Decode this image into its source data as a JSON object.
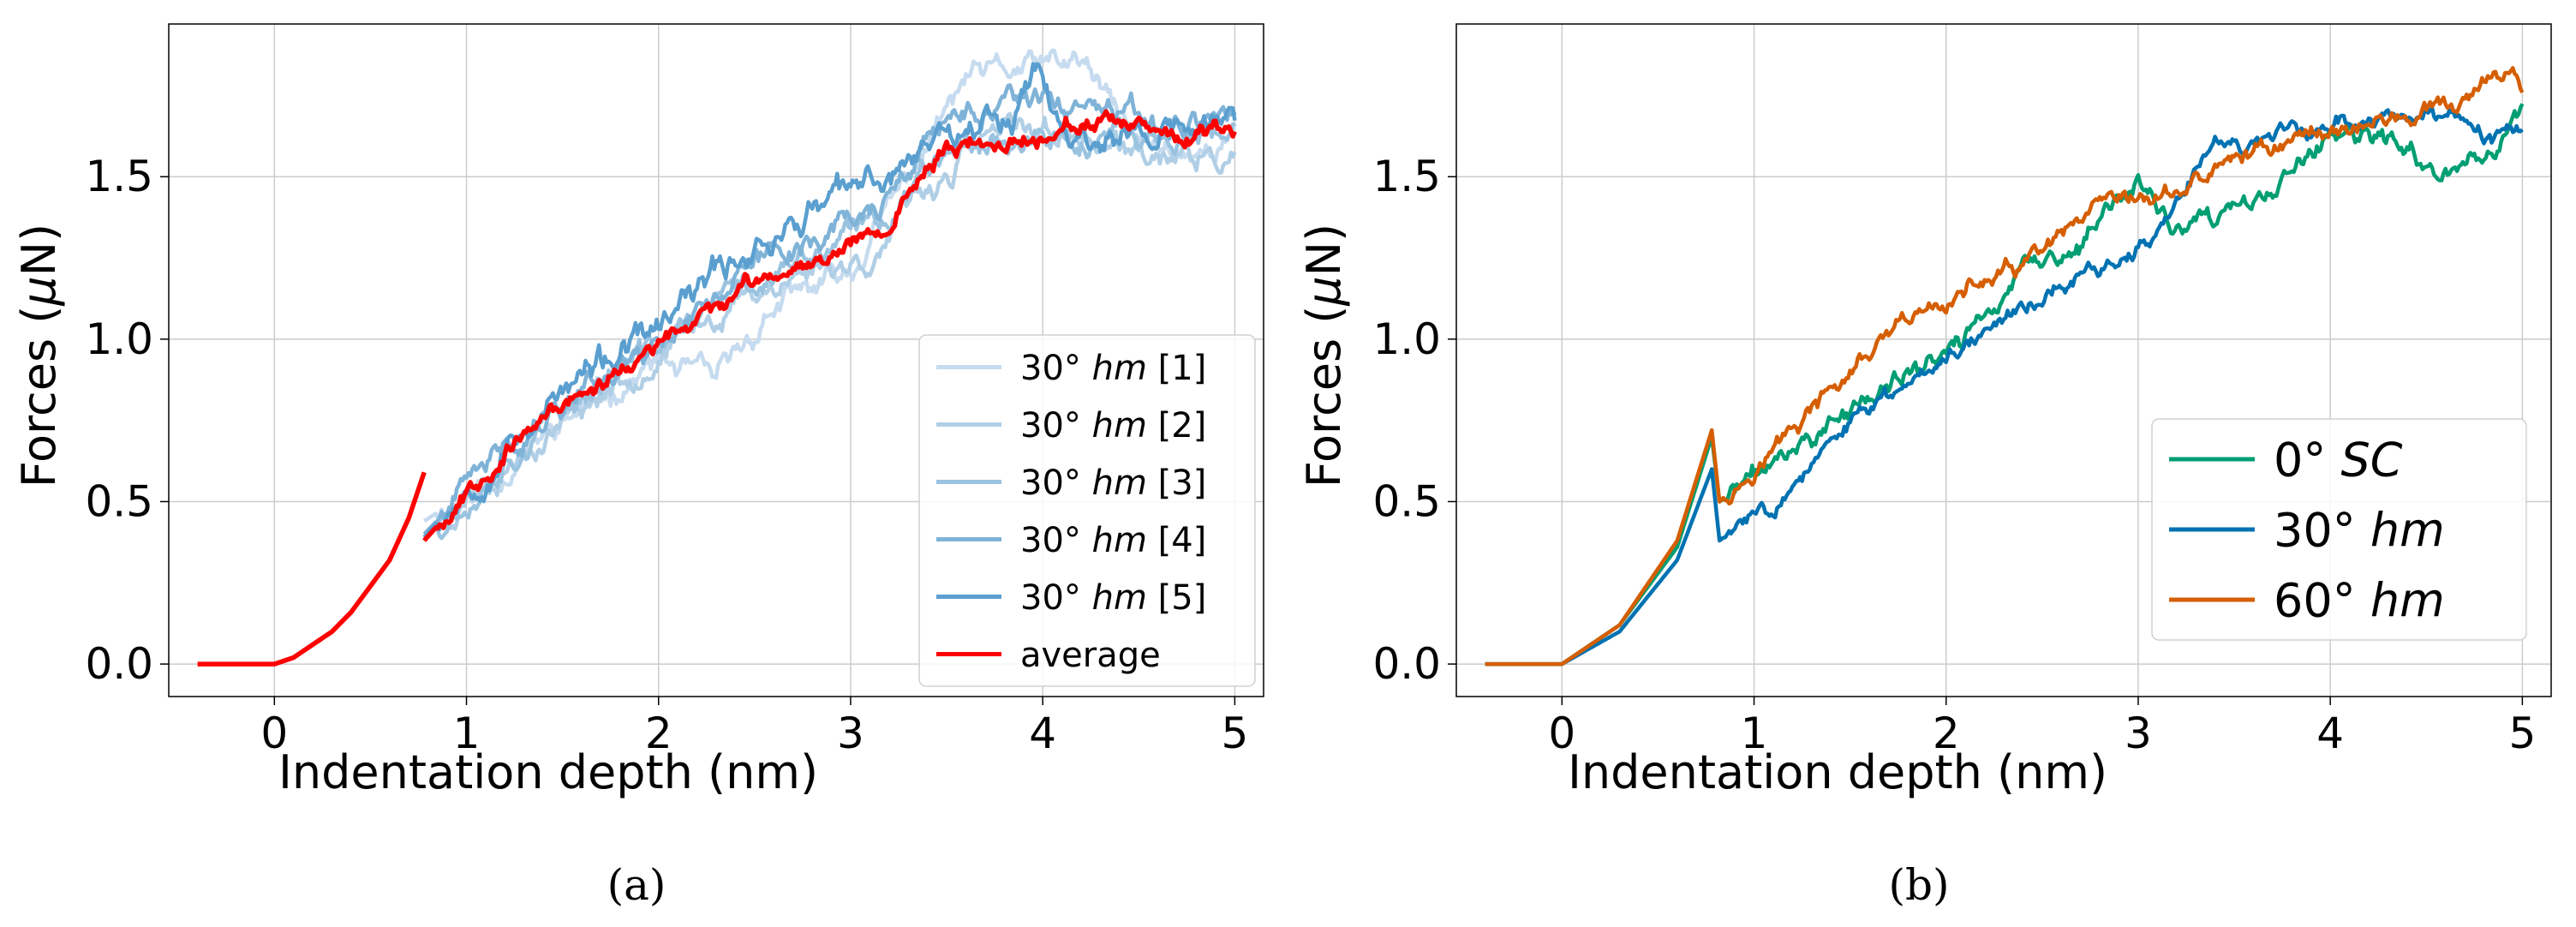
{
  "chart_data": [
    {
      "type": "line",
      "caption": "(a)",
      "xlabel": "Indentation depth (nm)",
      "ylabel": "Forces (μN)",
      "ylabel_parts": {
        "pre": "Forces (",
        "greek": "μ",
        "post": "N)"
      },
      "xlim": [
        -0.55,
        5.15
      ],
      "ylim": [
        -0.1,
        1.97
      ],
      "xticks": [
        0,
        1,
        2,
        3,
        4,
        5
      ],
      "xtick_labels": [
        "0",
        "1",
        "2",
        "3",
        "4",
        "5"
      ],
      "yticks": [
        0.0,
        0.5,
        1.0,
        1.5
      ],
      "ytick_labels": [
        "0.0",
        "0.5",
        "1.0",
        "1.5"
      ],
      "grid": true,
      "legend_position": "center-right",
      "series": [
        {
          "name": "30° hm [1]",
          "prefix": "30° ",
          "italic": "hm",
          "suffix": " [1]",
          "color": "#c6dbef",
          "shape": [
            [
              0.78,
              0.44
            ],
            [
              1.2,
              0.6
            ],
            [
              1.6,
              0.78
            ],
            [
              2.0,
              0.93
            ],
            [
              2.3,
              0.86
            ],
            [
              2.6,
              1.1
            ],
            [
              3.0,
              1.2
            ],
            [
              3.3,
              1.5
            ],
            [
              3.6,
              1.8
            ],
            [
              3.9,
              1.83
            ],
            [
              4.2,
              1.85
            ],
            [
              4.5,
              1.6
            ],
            [
              4.8,
              1.58
            ],
            [
              5.0,
              1.62
            ]
          ],
          "amp": 0.03,
          "seed": 11
        },
        {
          "name": "30° hm [2]",
          "prefix": "30° ",
          "italic": "hm",
          "suffix": " [2]",
          "color": "#b0cfe6",
          "shape": [
            [
              0.78,
              0.4
            ],
            [
              1.2,
              0.62
            ],
            [
              1.6,
              0.8
            ],
            [
              2.0,
              0.95
            ],
            [
              2.4,
              1.12
            ],
            [
              2.8,
              1.22
            ],
            [
              3.1,
              1.25
            ],
            [
              3.4,
              1.45
            ],
            [
              3.7,
              1.62
            ],
            [
              4.0,
              1.65
            ],
            [
              4.3,
              1.6
            ],
            [
              4.6,
              1.55
            ],
            [
              5.0,
              1.55
            ]
          ],
          "amp": 0.03,
          "seed": 23
        },
        {
          "name": "30° hm [3]",
          "prefix": "30° ",
          "italic": "hm",
          "suffix": " [3]",
          "color": "#9ac3e0",
          "shape": [
            [
              0.78,
              0.38
            ],
            [
              1.2,
              0.64
            ],
            [
              1.6,
              0.83
            ],
            [
              2.0,
              0.98
            ],
            [
              2.4,
              1.15
            ],
            [
              2.8,
              1.25
            ],
            [
              3.2,
              1.38
            ],
            [
              3.5,
              1.62
            ],
            [
              3.8,
              1.62
            ],
            [
              4.2,
              1.6
            ],
            [
              4.6,
              1.62
            ],
            [
              5.0,
              1.6
            ]
          ],
          "amp": 0.03,
          "seed": 37
        },
        {
          "name": "30° hm [4]",
          "prefix": "30° ",
          "italic": "hm",
          "suffix": " [4]",
          "color": "#7fb3d8",
          "shape": [
            [
              0.78,
              0.4
            ],
            [
              1.2,
              0.66
            ],
            [
              1.6,
              0.86
            ],
            [
              2.0,
              1.0
            ],
            [
              2.4,
              1.2
            ],
            [
              2.8,
              1.32
            ],
            [
              3.2,
              1.42
            ],
            [
              3.5,
              1.68
            ],
            [
              3.9,
              1.72
            ],
            [
              4.2,
              1.7
            ],
            [
              4.6,
              1.65
            ],
            [
              5.0,
              1.7
            ]
          ],
          "amp": 0.03,
          "seed": 41
        },
        {
          "name": "30° hm [5]",
          "prefix": "30° ",
          "italic": "hm",
          "suffix": " [5]",
          "color": "#5a9fcf",
          "shape": [
            [
              0.78,
              0.39
            ],
            [
              1.2,
              0.68
            ],
            [
              1.6,
              0.88
            ],
            [
              2.0,
              1.02
            ],
            [
              2.4,
              1.25
            ],
            [
              2.8,
              1.4
            ],
            [
              3.2,
              1.5
            ],
            [
              3.5,
              1.66
            ],
            [
              3.85,
              1.7
            ],
            [
              3.95,
              1.88
            ],
            [
              4.1,
              1.62
            ],
            [
              4.5,
              1.62
            ],
            [
              5.0,
              1.67
            ]
          ],
          "amp": 0.035,
          "seed": 53
        },
        {
          "name": "average",
          "prefix": "average",
          "italic": "",
          "suffix": "",
          "color": "#ff0000",
          "shape": [
            [
              0.78,
              0.38
            ],
            [
              1.2,
              0.66
            ],
            [
              1.6,
              0.84
            ],
            [
              2.0,
              0.97
            ],
            [
              2.4,
              1.14
            ],
            [
              2.8,
              1.25
            ],
            [
              3.2,
              1.36
            ],
            [
              3.5,
              1.6
            ],
            [
              3.8,
              1.6
            ],
            [
              4.2,
              1.67
            ],
            [
              4.6,
              1.62
            ],
            [
              5.0,
              1.62
            ]
          ],
          "amp": 0.02,
          "seed": 67
        }
      ],
      "shared_prefix": [
        [
          -0.4,
          0.0
        ],
        [
          0.0,
          0.0
        ],
        [
          0.1,
          0.02
        ],
        [
          0.2,
          0.06
        ],
        [
          0.3,
          0.1
        ],
        [
          0.4,
          0.16
        ],
        [
          0.5,
          0.24
        ],
        [
          0.6,
          0.32
        ],
        [
          0.7,
          0.45
        ],
        [
          0.78,
          0.59
        ]
      ]
    },
    {
      "type": "line",
      "caption": "(b)",
      "xlabel": "Indentation depth (nm)",
      "ylabel": "Forces (μN)",
      "ylabel_parts": {
        "pre": "Forces (",
        "greek": "μ",
        "post": "N)"
      },
      "xlim": [
        -0.55,
        5.15
      ],
      "ylim": [
        -0.1,
        1.97
      ],
      "xticks": [
        0,
        1,
        2,
        3,
        4,
        5
      ],
      "xtick_labels": [
        "0",
        "1",
        "2",
        "3",
        "4",
        "5"
      ],
      "yticks": [
        0.0,
        0.5,
        1.0,
        1.5
      ],
      "ytick_labels": [
        "0.0",
        "0.5",
        "1.0",
        "1.5"
      ],
      "grid": true,
      "legend_position": "lower-right",
      "series": [
        {
          "name": "0° SC",
          "prefix": "0° ",
          "italic": "SC",
          "suffix": "",
          "color": "#009e73",
          "shape": [
            [
              -0.4,
              0.0
            ],
            [
              0.0,
              0.0
            ],
            [
              0.3,
              0.12
            ],
            [
              0.6,
              0.36
            ],
            [
              0.78,
              0.7
            ],
            [
              0.82,
              0.5
            ],
            [
              1.2,
              0.66
            ],
            [
              1.6,
              0.82
            ],
            [
              2.0,
              0.95
            ],
            [
              2.4,
              1.2
            ],
            [
              2.7,
              1.28
            ],
            [
              3.0,
              1.5
            ],
            [
              3.2,
              1.32
            ],
            [
              3.6,
              1.4
            ],
            [
              4.0,
              1.62
            ],
            [
              4.3,
              1.6
            ],
            [
              4.5,
              1.52
            ],
            [
              4.8,
              1.55
            ],
            [
              5.0,
              1.72
            ]
          ],
          "amp": 0.025,
          "seed": 71
        },
        {
          "name": "30° hm",
          "prefix": "30° ",
          "italic": "hm",
          "suffix": "",
          "color": "#0072b2",
          "shape": [
            [
              -0.4,
              0.0
            ],
            [
              0.0,
              0.0
            ],
            [
              0.3,
              0.1
            ],
            [
              0.6,
              0.32
            ],
            [
              0.78,
              0.6
            ],
            [
              0.82,
              0.38
            ],
            [
              1.2,
              0.55
            ],
            [
              1.6,
              0.78
            ],
            [
              2.0,
              0.96
            ],
            [
              2.4,
              1.1
            ],
            [
              2.8,
              1.22
            ],
            [
              3.1,
              1.3
            ],
            [
              3.4,
              1.62
            ],
            [
              3.7,
              1.6
            ],
            [
              4.1,
              1.68
            ],
            [
              4.5,
              1.7
            ],
            [
              4.8,
              1.6
            ],
            [
              5.0,
              1.63
            ]
          ],
          "amp": 0.02,
          "seed": 83
        },
        {
          "name": "60° hm",
          "prefix": "60° ",
          "italic": "hm",
          "suffix": "",
          "color": "#d55e00",
          "shape": [
            [
              -0.4,
              0.0
            ],
            [
              0.0,
              0.0
            ],
            [
              0.3,
              0.12
            ],
            [
              0.6,
              0.38
            ],
            [
              0.78,
              0.72
            ],
            [
              0.82,
              0.5
            ],
            [
              1.2,
              0.72
            ],
            [
              1.6,
              0.95
            ],
            [
              2.0,
              1.12
            ],
            [
              2.4,
              1.22
            ],
            [
              2.8,
              1.38
            ],
            [
              3.2,
              1.45
            ],
            [
              3.6,
              1.58
            ],
            [
              4.0,
              1.65
            ],
            [
              4.4,
              1.68
            ],
            [
              4.7,
              1.72
            ],
            [
              4.95,
              1.84
            ],
            [
              5.0,
              1.78
            ]
          ],
          "amp": 0.022,
          "seed": 97
        }
      ]
    }
  ]
}
